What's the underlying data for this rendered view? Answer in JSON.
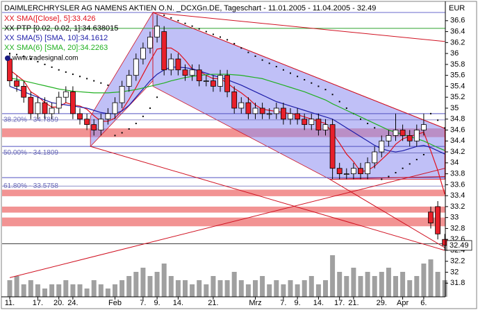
{
  "chart_data": {
    "type": "candlestick",
    "title": "DAIMLERCHRYSLER AG NAMENS AKTIEN O.N. _DCXGn.DE, Tageschart - 11.01.2005 - 11.04.2005 - 32.49",
    "unit": "EUR",
    "watermark": "www.tradesignal.com",
    "categories": [
      "11.",
      null,
      null,
      null,
      "17.",
      null,
      null,
      "20.",
      null,
      "24.",
      null,
      null,
      null,
      null,
      null,
      "Feb",
      null,
      null,
      null,
      "7.",
      null,
      "9.",
      null,
      null,
      "14.",
      null,
      null,
      null,
      null,
      "21.",
      null,
      null,
      null,
      null,
      null,
      "Mrz",
      null,
      null,
      null,
      "7.",
      null,
      "9.",
      null,
      null,
      "14.",
      null,
      null,
      "17.",
      null,
      "21.",
      null,
      null,
      null,
      "29.",
      null,
      null,
      "Apr",
      null,
      null,
      "6.",
      null,
      null,
      null
    ],
    "open": [
      35.9,
      35.5,
      35.4,
      35.2,
      34.9,
      35.1,
      34.9,
      35.0,
      35.2,
      35.3,
      34.9,
      34.8,
      34.7,
      34.6,
      34.8,
      34.9,
      35.1,
      35.4,
      35.6,
      35.9,
      36.1,
      36.3,
      36.4,
      35.7,
      35.9,
      35.7,
      35.6,
      35.7,
      35.5,
      35.5,
      35.4,
      35.6,
      35.3,
      35.0,
      35.1,
      34.9,
      35.0,
      34.9,
      34.9,
      35.0,
      34.8,
      34.9,
      34.8,
      34.7,
      34.8,
      34.6,
      34.7,
      33.9,
      33.8,
      33.8,
      33.9,
      33.8,
      34.0,
      34.2,
      34.4,
      34.5,
      34.6,
      34.5,
      34.4,
      34.6,
      33.1,
      33.2,
      32.6
    ],
    "high": [
      36.0,
      35.6,
      35.5,
      35.3,
      35.2,
      35.2,
      35.1,
      35.3,
      35.4,
      35.4,
      35.0,
      34.9,
      34.8,
      34.9,
      35.0,
      35.2,
      35.5,
      35.7,
      36.0,
      36.2,
      36.4,
      36.7,
      36.5,
      36.0,
      36.0,
      35.8,
      35.8,
      35.8,
      35.6,
      35.6,
      35.7,
      35.7,
      35.4,
      35.2,
      35.2,
      35.1,
      35.1,
      35.0,
      35.1,
      35.1,
      35.0,
      35.0,
      34.9,
      34.9,
      34.9,
      34.8,
      34.8,
      34.0,
      33.9,
      34.0,
      34.0,
      34.1,
      34.3,
      34.5,
      34.6,
      34.9,
      34.7,
      34.6,
      34.7,
      34.9,
      33.2,
      33.3,
      32.7
    ],
    "low": [
      35.4,
      35.3,
      35.1,
      34.8,
      34.8,
      34.8,
      34.8,
      34.9,
      35.1,
      34.8,
      34.7,
      34.6,
      34.5,
      34.5,
      34.7,
      34.8,
      35.0,
      35.3,
      35.5,
      35.8,
      36.0,
      36.2,
      35.6,
      35.6,
      35.6,
      35.5,
      35.5,
      35.4,
      35.4,
      35.3,
      35.3,
      35.2,
      34.9,
      34.9,
      34.8,
      34.8,
      34.8,
      34.8,
      34.8,
      34.7,
      34.7,
      34.7,
      34.6,
      34.6,
      34.5,
      34.5,
      33.7,
      33.7,
      33.7,
      33.7,
      33.7,
      33.7,
      33.9,
      34.1,
      34.3,
      34.4,
      34.4,
      34.3,
      34.3,
      34.5,
      32.8,
      32.6,
      32.4
    ],
    "close": [
      35.5,
      35.4,
      35.2,
      34.9,
      35.1,
      34.9,
      35.0,
      35.2,
      35.3,
      34.9,
      34.8,
      34.7,
      34.6,
      34.8,
      34.9,
      35.1,
      35.4,
      35.6,
      35.9,
      36.1,
      36.3,
      36.5,
      35.7,
      35.9,
      35.7,
      35.6,
      35.7,
      35.5,
      35.5,
      35.4,
      35.6,
      35.3,
      35.0,
      35.1,
      34.9,
      35.0,
      34.9,
      34.9,
      35.0,
      34.8,
      34.9,
      34.8,
      34.7,
      34.8,
      34.6,
      34.7,
      33.9,
      33.8,
      33.8,
      33.9,
      33.8,
      34.0,
      34.2,
      34.4,
      34.5,
      34.6,
      34.5,
      34.4,
      34.6,
      34.7,
      32.9,
      32.7,
      32.49
    ],
    "up_color": "#ffffff",
    "down_color": "#e8202a",
    "volume": [
      4,
      5,
      3,
      4,
      3,
      2,
      3,
      3,
      4,
      3,
      3,
      2,
      4,
      3,
      2,
      3,
      4,
      5,
      6,
      7,
      5,
      6,
      8,
      5,
      4,
      4,
      3,
      4,
      3,
      5,
      4,
      4,
      6,
      4,
      3,
      4,
      5,
      3,
      4,
      3,
      4,
      3,
      4,
      5,
      3,
      4,
      10,
      6,
      5,
      7,
      5,
      6,
      5,
      6,
      7,
      5,
      6,
      4,
      5,
      8,
      9,
      6,
      4
    ],
    "volume_color": "#a0a0a0",
    "ylim": [
      31.55,
      36.94
    ],
    "yticks": [
      36.6,
      36.4,
      36.2,
      36,
      35.8,
      35.6,
      35.4,
      35.2,
      35,
      34.8,
      34.6,
      34.4,
      34.2,
      34,
      33.8,
      33.6,
      33.4,
      33.2,
      33,
      32.8,
      32.6,
      32.4,
      32.2,
      32,
      31.8
    ],
    "indicators": [
      {
        "name": "XX SMA([Close], 5]:33.426",
        "color": "#e0101c",
        "style": "line",
        "values": [
          35.7,
          35.6,
          35.5,
          35.3,
          35.22,
          35.1,
          35.02,
          35.02,
          35.1,
          35.06,
          35.04,
          34.98,
          34.86,
          34.76,
          34.76,
          34.82,
          34.96,
          35.16,
          35.38,
          35.62,
          35.86,
          36.08,
          36.1,
          36.1,
          36.02,
          35.88,
          35.72,
          35.68,
          35.6,
          35.54,
          35.54,
          35.46,
          35.36,
          35.28,
          35.18,
          35.06,
          34.98,
          34.96,
          34.94,
          34.92,
          34.9,
          34.88,
          34.84,
          34.8,
          34.76,
          34.72,
          34.54,
          34.36,
          34.16,
          34.02,
          33.84,
          33.86,
          33.94,
          34.06,
          34.18,
          34.34,
          34.44,
          34.48,
          34.52,
          34.56,
          34.22,
          33.86,
          33.426
        ]
      },
      {
        "name": "XX PTP [0.02, 0.02, 1]:34.638015",
        "color": "#000000",
        "style": "dots",
        "values": [
          36.0,
          35.98,
          35.95,
          35.9,
          35.85,
          35.8,
          35.75,
          35.7,
          35.66,
          35.62,
          35.58,
          35.54,
          35.5,
          35.46,
          35.42,
          34.5,
          34.55,
          34.62,
          34.72,
          34.85,
          35.0,
          35.2,
          36.7,
          36.65,
          36.6,
          36.55,
          36.5,
          36.45,
          36.4,
          36.35,
          36.3,
          36.25,
          36.18,
          36.1,
          36.02,
          35.95,
          35.88,
          35.82,
          35.76,
          35.7,
          35.64,
          35.58,
          35.52,
          35.46,
          35.4,
          35.34,
          35.25,
          35.12,
          35.0,
          34.9,
          34.8,
          34.72,
          34.64,
          33.7,
          33.75,
          33.82,
          33.9,
          33.98,
          34.06,
          34.15,
          34.9,
          34.78,
          34.638015
        ]
      },
      {
        "name": "XX SMA(5) [SMA, 10]:34.1612",
        "color": "#1c1ca8",
        "style": "line",
        "values": [
          35.4,
          35.35,
          35.3,
          35.25,
          35.2,
          35.15,
          35.1,
          35.08,
          35.06,
          35.04,
          35.02,
          35.0,
          34.96,
          34.92,
          34.9,
          34.9,
          34.95,
          35.05,
          35.2,
          35.35,
          35.5,
          35.62,
          35.7,
          35.75,
          35.75,
          35.74,
          35.72,
          35.68,
          35.64,
          35.6,
          35.56,
          35.52,
          35.47,
          35.42,
          35.36,
          35.3,
          35.24,
          35.18,
          35.12,
          35.08,
          35.04,
          35.0,
          34.96,
          34.92,
          34.88,
          34.84,
          34.8,
          34.72,
          34.64,
          34.56,
          34.48,
          34.4,
          34.32,
          34.26,
          34.22,
          34.2,
          34.22,
          34.26,
          34.3,
          34.32,
          34.28,
          34.22,
          34.1612
        ]
      },
      {
        "name": "XX SMA(6) [SMA, 20]:34.2263",
        "color": "#20b020",
        "style": "line",
        "values": [
          35.55,
          35.53,
          35.5,
          35.47,
          35.44,
          35.41,
          35.38,
          35.35,
          35.33,
          35.31,
          35.3,
          35.29,
          35.28,
          35.28,
          35.28,
          35.29,
          35.3,
          35.32,
          35.34,
          35.37,
          35.4,
          35.43,
          35.46,
          35.5,
          35.53,
          35.56,
          35.58,
          35.6,
          35.61,
          35.62,
          35.62,
          35.62,
          35.61,
          35.6,
          35.58,
          35.56,
          35.54,
          35.5,
          35.46,
          35.42,
          35.38,
          35.34,
          35.3,
          35.25,
          35.2,
          35.15,
          35.08,
          35.02,
          34.96,
          34.9,
          34.84,
          34.78,
          34.72,
          34.66,
          34.6,
          34.56,
          34.52,
          34.48,
          34.44,
          34.4,
          34.34,
          34.28,
          34.2263
        ]
      }
    ],
    "fib_levels": [
      {
        "label": "38.20% - 34.7859",
        "value": 34.7859
      },
      {
        "label": "50.00% - 34.1809",
        "value": 34.1809
      },
      {
        "label": "61.80% - 33.5758",
        "value": 33.5758
      }
    ],
    "fib_color": "#6a6ab8",
    "zones": [
      [
        34.47,
        34.63
      ],
      [
        33.39,
        33.51
      ],
      [
        33.09,
        33.2
      ],
      [
        32.84,
        33.0
      ]
    ],
    "zone_color": "#f08080",
    "hlines": [
      {
        "value": 36.75,
        "color": "#6a6acd"
      },
      {
        "value": 36.46,
        "color": "#2ca02c"
      },
      {
        "value": 34.9,
        "color": "#5050c0"
      },
      {
        "value": 34.3,
        "color": "#5050c0"
      },
      {
        "value": 33.73,
        "color": "#5050c0"
      },
      {
        "value": 32.52,
        "color": "#404040"
      }
    ],
    "channels": [
      {
        "x": [
          11.5,
          20.4,
          20.4,
          11.5
        ],
        "y": [
          34.85,
          36.75,
          35.5,
          34.3
        ]
      },
      {
        "x": [
          20.4,
          62,
          62,
          45.6,
          20.4
        ],
        "y": [
          36.75,
          34.63,
          33.7,
          33.7,
          35.4
        ]
      }
    ],
    "channel_color": "#8c8cf0",
    "trendlines": [
      {
        "x": [
          11.5,
          62
        ],
        "y": [
          34.3,
          32.4
        ]
      },
      {
        "x": [
          20.4,
          62
        ],
        "y": [
          36.75,
          36.22
        ]
      },
      {
        "x": [
          20.4,
          62
        ],
        "y": [
          36.75,
          34.63
        ]
      },
      {
        "x": [
          45.6,
          62
        ],
        "y": [
          33.7,
          32.45
        ]
      },
      {
        "x": [
          0,
          62
        ],
        "y": [
          31.9,
          33.9
        ]
      },
      {
        "x": [
          45.6,
          62
        ],
        "y": [
          33.7,
          33.75
        ]
      }
    ],
    "trend_color": "#d01020"
  }
}
